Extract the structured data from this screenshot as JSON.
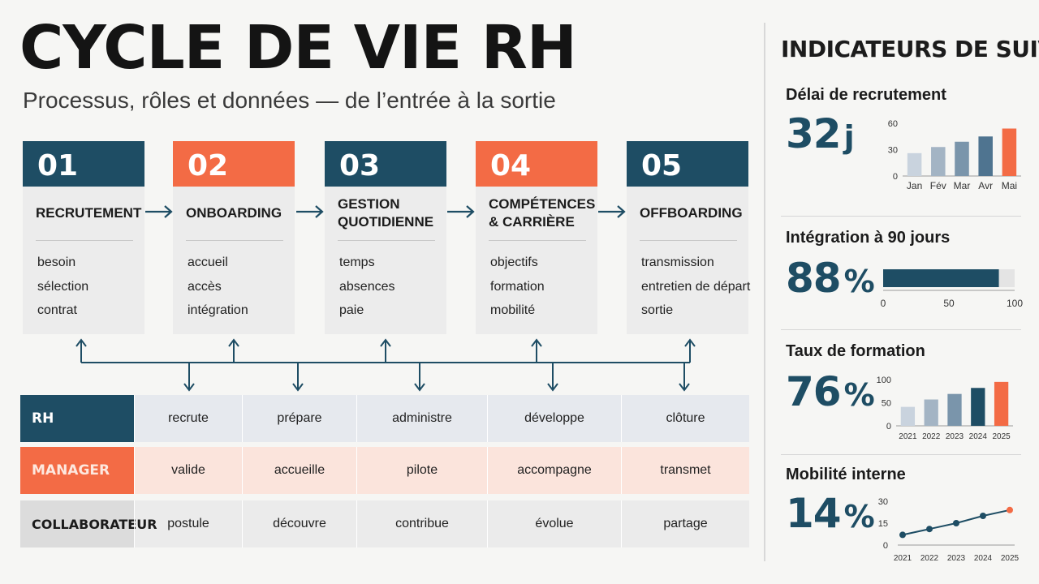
{
  "header": {
    "title": "CYCLE DE VIE RH",
    "subtitle": "Processus, rôles et données — de l’entrée à la sortie"
  },
  "stages": [
    {
      "num": "01",
      "title": "RECRUTEMENT",
      "items": [
        "besoin",
        "sélection",
        "contrat"
      ]
    },
    {
      "num": "02",
      "title": "ONBOARDING",
      "items": [
        "accueil",
        "accès",
        "intégration"
      ]
    },
    {
      "num": "03",
      "title": "GESTION QUOTIDIENNE",
      "items": [
        "temps",
        "absences",
        "paie"
      ]
    },
    {
      "num": "04",
      "title": "COMPÉTENCES & CARRIÈRE",
      "items": [
        "objectifs",
        "formation",
        "mobilité"
      ]
    },
    {
      "num": "05",
      "title": "OFFBOARDING",
      "items": [
        "transmission",
        "entretien de départ",
        "sortie"
      ]
    }
  ],
  "roles": [
    {
      "role": "RH",
      "cells": [
        "recrute",
        "prépare",
        "administre",
        "développe",
        "clôture"
      ]
    },
    {
      "role": "MANAGER",
      "cells": [
        "valide",
        "accueille",
        "pilote",
        "accompagne",
        "transmet"
      ]
    },
    {
      "role": "COLLABORATEUR",
      "cells": [
        "postule",
        "découvre",
        "contribue",
        "évolue",
        "partage"
      ]
    }
  ],
  "indicators": {
    "title": "INDICATEURS DE SUIVI",
    "items": [
      {
        "label": "Délai de recrutement",
        "value": "32",
        "unit": "j"
      },
      {
        "label": "Intégration à 90 jours",
        "value": "88",
        "unit": "%"
      },
      {
        "label": "Taux de formation",
        "value": "76",
        "unit": "%"
      },
      {
        "label": "Mobilité interne",
        "value": "14",
        "unit": "%"
      }
    ]
  },
  "colors": {
    "navy": "#1e4d64",
    "orange": "#f36b45",
    "light_blue": "#c9d3de"
  },
  "chart_data": [
    {
      "type": "bar",
      "categories": [
        "Jan",
        "Fév",
        "Mar",
        "Avr",
        "Mai"
      ],
      "values": [
        26,
        33,
        39,
        45,
        54
      ],
      "ylim": [
        0,
        60
      ],
      "yticks": [
        0,
        30,
        60
      ],
      "colors": [
        "#c9d3de",
        "#a3b4c4",
        "#7a95ab",
        "#4f7490",
        "#f36b45"
      ]
    },
    {
      "type": "bar",
      "orientation": "horizontal",
      "values": [
        88
      ],
      "xlim": [
        0,
        100
      ],
      "xticks": [
        0,
        50,
        100
      ]
    },
    {
      "type": "bar",
      "categories": [
        "2021",
        "2022",
        "2023",
        "2024",
        "2025"
      ],
      "values": [
        41,
        57,
        69,
        82,
        95
      ],
      "ylim": [
        0,
        100
      ],
      "yticks": [
        0,
        50,
        100
      ],
      "colors": [
        "#c9d3de",
        "#a3b4c4",
        "#7a95ab",
        "#1e4d64",
        "#f36b45"
      ]
    },
    {
      "type": "line",
      "x": [
        "2021",
        "2022",
        "2023",
        "2024",
        "2025"
      ],
      "values": [
        7,
        11,
        15,
        20,
        24
      ],
      "ylim": [
        0,
        30
      ],
      "yticks": [
        0,
        15,
        30
      ]
    }
  ]
}
